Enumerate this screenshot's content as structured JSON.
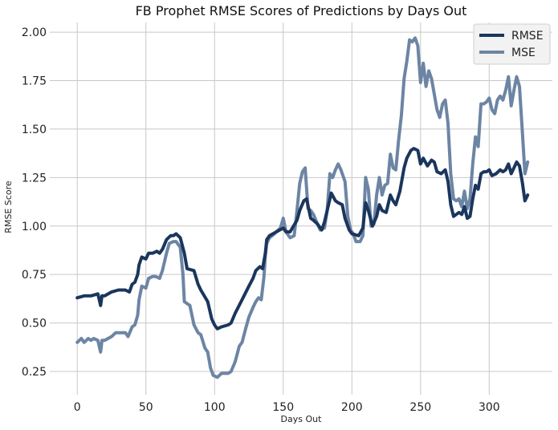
{
  "chart_data": {
    "type": "line",
    "title": "FB Prophet RMSE Scores of Predictions by Days Out",
    "xlabel": "Days Out",
    "ylabel": "RMSE Score",
    "xlim": [
      -20,
      346
    ],
    "ylim": [
      0.13,
      2.05
    ],
    "xticks": [
      0,
      50,
      100,
      150,
      200,
      250,
      300
    ],
    "yticks": [
      0.25,
      0.5,
      0.75,
      1.0,
      1.25,
      1.5,
      1.75,
      2.0
    ],
    "ytick_labels": [
      "0.25",
      "0.50",
      "0.75",
      "1.00",
      "1.25",
      "1.50",
      "1.75",
      "2.00"
    ],
    "grid": true,
    "legend_position": "top-right",
    "series": [
      {
        "name": "RMSE",
        "color": "#1b365d",
        "points": [
          [
            0,
            0.63
          ],
          [
            5,
            0.64
          ],
          [
            10,
            0.64
          ],
          [
            15,
            0.65
          ],
          [
            17,
            0.59
          ],
          [
            18,
            0.64
          ],
          [
            20,
            0.64
          ],
          [
            25,
            0.66
          ],
          [
            30,
            0.67
          ],
          [
            35,
            0.67
          ],
          [
            38,
            0.66
          ],
          [
            40,
            0.7
          ],
          [
            42,
            0.71
          ],
          [
            44,
            0.75
          ],
          [
            45,
            0.8
          ],
          [
            47,
            0.84
          ],
          [
            50,
            0.83
          ],
          [
            52,
            0.86
          ],
          [
            55,
            0.86
          ],
          [
            58,
            0.87
          ],
          [
            60,
            0.86
          ],
          [
            62,
            0.88
          ],
          [
            65,
            0.93
          ],
          [
            68,
            0.95
          ],
          [
            70,
            0.95
          ],
          [
            72,
            0.96
          ],
          [
            75,
            0.94
          ],
          [
            78,
            0.86
          ],
          [
            80,
            0.78
          ],
          [
            85,
            0.77
          ],
          [
            88,
            0.7
          ],
          [
            90,
            0.67
          ],
          [
            95,
            0.61
          ],
          [
            98,
            0.52
          ],
          [
            100,
            0.49
          ],
          [
            102,
            0.47
          ],
          [
            105,
            0.48
          ],
          [
            110,
            0.49
          ],
          [
            112,
            0.5
          ],
          [
            115,
            0.55
          ],
          [
            120,
            0.62
          ],
          [
            125,
            0.69
          ],
          [
            128,
            0.73
          ],
          [
            130,
            0.77
          ],
          [
            133,
            0.79
          ],
          [
            135,
            0.78
          ],
          [
            137,
            0.86
          ],
          [
            138,
            0.93
          ],
          [
            140,
            0.95
          ],
          [
            145,
            0.97
          ],
          [
            150,
            0.99
          ],
          [
            152,
            0.97
          ],
          [
            155,
            0.97
          ],
          [
            160,
            1.03
          ],
          [
            162,
            1.08
          ],
          [
            165,
            1.13
          ],
          [
            167,
            1.14
          ],
          [
            170,
            1.04
          ],
          [
            172,
            1.03
          ],
          [
            175,
            1.01
          ],
          [
            178,
            0.98
          ],
          [
            180,
            1.02
          ],
          [
            183,
            1.11
          ],
          [
            185,
            1.17
          ],
          [
            188,
            1.13
          ],
          [
            190,
            1.12
          ],
          [
            193,
            1.11
          ],
          [
            195,
            1.04
          ],
          [
            198,
            0.98
          ],
          [
            200,
            0.96
          ],
          [
            205,
            0.95
          ],
          [
            208,
            0.99
          ],
          [
            210,
            1.12
          ],
          [
            212,
            1.08
          ],
          [
            215,
            1.0
          ],
          [
            218,
            1.05
          ],
          [
            220,
            1.11
          ],
          [
            222,
            1.08
          ],
          [
            225,
            1.07
          ],
          [
            228,
            1.16
          ],
          [
            230,
            1.13
          ],
          [
            232,
            1.11
          ],
          [
            235,
            1.18
          ],
          [
            238,
            1.3
          ],
          [
            240,
            1.35
          ],
          [
            243,
            1.39
          ],
          [
            245,
            1.4
          ],
          [
            248,
            1.39
          ],
          [
            250,
            1.32
          ],
          [
            252,
            1.35
          ],
          [
            255,
            1.31
          ],
          [
            258,
            1.34
          ],
          [
            260,
            1.33
          ],
          [
            262,
            1.28
          ],
          [
            265,
            1.27
          ],
          [
            268,
            1.29
          ],
          [
            270,
            1.23
          ],
          [
            272,
            1.11
          ],
          [
            274,
            1.05
          ],
          [
            276,
            1.06
          ],
          [
            278,
            1.07
          ],
          [
            280,
            1.06
          ],
          [
            282,
            1.1
          ],
          [
            284,
            1.04
          ],
          [
            286,
            1.05
          ],
          [
            288,
            1.14
          ],
          [
            290,
            1.21
          ],
          [
            292,
            1.19
          ],
          [
            294,
            1.27
          ],
          [
            296,
            1.28
          ],
          [
            298,
            1.28
          ],
          [
            300,
            1.29
          ],
          [
            302,
            1.26
          ],
          [
            305,
            1.27
          ],
          [
            308,
            1.29
          ],
          [
            310,
            1.28
          ],
          [
            312,
            1.29
          ],
          [
            314,
            1.32
          ],
          [
            316,
            1.27
          ],
          [
            318,
            1.3
          ],
          [
            320,
            1.33
          ],
          [
            322,
            1.31
          ],
          [
            324,
            1.23
          ],
          [
            326,
            1.13
          ],
          [
            328,
            1.16
          ]
        ]
      },
      {
        "name": "MSE",
        "color": "#6d85a4",
        "points": [
          [
            0,
            0.4
          ],
          [
            3,
            0.42
          ],
          [
            5,
            0.4
          ],
          [
            8,
            0.42
          ],
          [
            10,
            0.41
          ],
          [
            12,
            0.42
          ],
          [
            15,
            0.41
          ],
          [
            17,
            0.35
          ],
          [
            18,
            0.41
          ],
          [
            20,
            0.41
          ],
          [
            25,
            0.43
          ],
          [
            28,
            0.45
          ],
          [
            30,
            0.45
          ],
          [
            35,
            0.45
          ],
          [
            37,
            0.43
          ],
          [
            40,
            0.48
          ],
          [
            42,
            0.49
          ],
          [
            44,
            0.54
          ],
          [
            45,
            0.62
          ],
          [
            47,
            0.69
          ],
          [
            50,
            0.68
          ],
          [
            52,
            0.73
          ],
          [
            55,
            0.74
          ],
          [
            57,
            0.74
          ],
          [
            60,
            0.73
          ],
          [
            62,
            0.77
          ],
          [
            65,
            0.86
          ],
          [
            67,
            0.91
          ],
          [
            70,
            0.92
          ],
          [
            72,
            0.92
          ],
          [
            75,
            0.89
          ],
          [
            77,
            0.75
          ],
          [
            78,
            0.61
          ],
          [
            80,
            0.6
          ],
          [
            82,
            0.59
          ],
          [
            85,
            0.49
          ],
          [
            88,
            0.45
          ],
          [
            90,
            0.44
          ],
          [
            93,
            0.37
          ],
          [
            95,
            0.35
          ],
          [
            97,
            0.27
          ],
          [
            99,
            0.23
          ],
          [
            102,
            0.22
          ],
          [
            105,
            0.24
          ],
          [
            108,
            0.24
          ],
          [
            110,
            0.24
          ],
          [
            112,
            0.25
          ],
          [
            115,
            0.3
          ],
          [
            118,
            0.38
          ],
          [
            120,
            0.4
          ],
          [
            123,
            0.48
          ],
          [
            125,
            0.53
          ],
          [
            128,
            0.58
          ],
          [
            130,
            0.61
          ],
          [
            132,
            0.63
          ],
          [
            134,
            0.62
          ],
          [
            136,
            0.74
          ],
          [
            137,
            0.85
          ],
          [
            138,
            0.91
          ],
          [
            140,
            0.94
          ],
          [
            142,
            0.95
          ],
          [
            145,
            0.97
          ],
          [
            148,
            0.99
          ],
          [
            150,
            1.04
          ],
          [
            152,
            0.97
          ],
          [
            155,
            0.94
          ],
          [
            158,
            0.95
          ],
          [
            160,
            1.08
          ],
          [
            162,
            1.22
          ],
          [
            164,
            1.28
          ],
          [
            166,
            1.3
          ],
          [
            168,
            1.09
          ],
          [
            170,
            1.08
          ],
          [
            172,
            1.06
          ],
          [
            175,
            1.01
          ],
          [
            177,
            0.98
          ],
          [
            180,
            0.99
          ],
          [
            182,
            1.08
          ],
          [
            184,
            1.27
          ],
          [
            186,
            1.25
          ],
          [
            188,
            1.29
          ],
          [
            190,
            1.32
          ],
          [
            192,
            1.29
          ],
          [
            195,
            1.23
          ],
          [
            197,
            1.05
          ],
          [
            199,
            0.98
          ],
          [
            201,
            0.96
          ],
          [
            203,
            0.92
          ],
          [
            206,
            0.92
          ],
          [
            208,
            0.95
          ],
          [
            210,
            1.25
          ],
          [
            212,
            1.19
          ],
          [
            214,
            1.0
          ],
          [
            216,
            1.01
          ],
          [
            218,
            1.16
          ],
          [
            220,
            1.25
          ],
          [
            222,
            1.16
          ],
          [
            224,
            1.21
          ],
          [
            226,
            1.22
          ],
          [
            228,
            1.37
          ],
          [
            230,
            1.3
          ],
          [
            232,
            1.29
          ],
          [
            234,
            1.44
          ],
          [
            236,
            1.57
          ],
          [
            238,
            1.76
          ],
          [
            240,
            1.85
          ],
          [
            242,
            1.96
          ],
          [
            244,
            1.95
          ],
          [
            246,
            1.97
          ],
          [
            248,
            1.93
          ],
          [
            250,
            1.74
          ],
          [
            252,
            1.84
          ],
          [
            254,
            1.72
          ],
          [
            256,
            1.8
          ],
          [
            258,
            1.76
          ],
          [
            260,
            1.68
          ],
          [
            262,
            1.6
          ],
          [
            264,
            1.56
          ],
          [
            266,
            1.63
          ],
          [
            268,
            1.65
          ],
          [
            270,
            1.53
          ],
          [
            272,
            1.27
          ],
          [
            274,
            1.14
          ],
          [
            276,
            1.13
          ],
          [
            278,
            1.14
          ],
          [
            280,
            1.1
          ],
          [
            282,
            1.18
          ],
          [
            284,
            1.09
          ],
          [
            286,
            1.14
          ],
          [
            288,
            1.32
          ],
          [
            290,
            1.46
          ],
          [
            292,
            1.41
          ],
          [
            294,
            1.63
          ],
          [
            296,
            1.63
          ],
          [
            298,
            1.64
          ],
          [
            300,
            1.66
          ],
          [
            302,
            1.6
          ],
          [
            304,
            1.58
          ],
          [
            306,
            1.65
          ],
          [
            308,
            1.67
          ],
          [
            310,
            1.65
          ],
          [
            312,
            1.7
          ],
          [
            314,
            1.77
          ],
          [
            316,
            1.62
          ],
          [
            318,
            1.7
          ],
          [
            320,
            1.77
          ],
          [
            322,
            1.72
          ],
          [
            324,
            1.5
          ],
          [
            326,
            1.27
          ],
          [
            328,
            1.33
          ]
        ]
      }
    ]
  }
}
